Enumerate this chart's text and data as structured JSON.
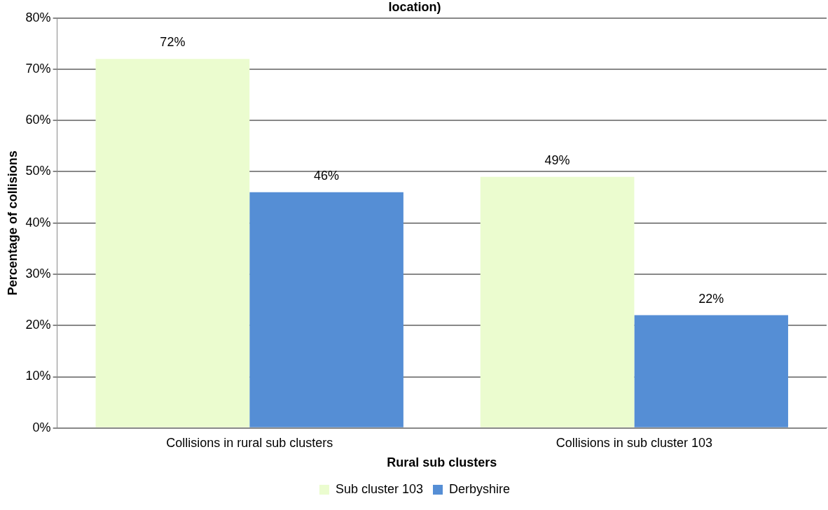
{
  "chart_data": {
    "type": "bar",
    "title": "location)",
    "xlabel": "Rural sub clusters",
    "ylabel": "Percentage of collisions",
    "categories": [
      "Collisions in rural sub clusters",
      "Collisions in sub cluster 103"
    ],
    "series": [
      {
        "name": "Sub cluster 103",
        "color": "#ebfccf",
        "values": [
          72,
          49
        ],
        "value_labels": [
          "72%",
          "49%"
        ]
      },
      {
        "name": "Derbyshire",
        "color": "#558ed5",
        "values": [
          46,
          22
        ],
        "value_labels": [
          "46%",
          "22%"
        ]
      }
    ],
    "ylim": [
      0,
      80
    ],
    "yticks": [
      {
        "value": 0,
        "label": "0%"
      },
      {
        "value": 10,
        "label": "10%"
      },
      {
        "value": 20,
        "label": "20%"
      },
      {
        "value": 30,
        "label": "30%"
      },
      {
        "value": 40,
        "label": "40%"
      },
      {
        "value": 50,
        "label": "50%"
      },
      {
        "value": 60,
        "label": "60%"
      },
      {
        "value": 70,
        "label": "70%"
      },
      {
        "value": 80,
        "label": "80%"
      }
    ],
    "grid": "y",
    "legend": "bottom"
  }
}
